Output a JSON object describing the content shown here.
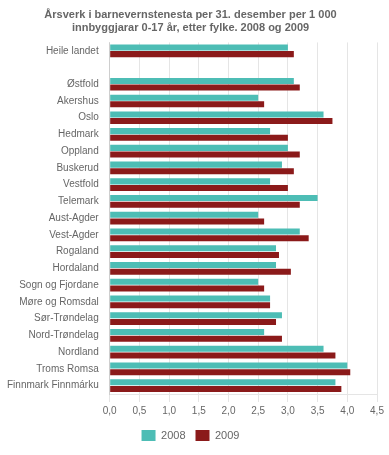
{
  "chart_data": {
    "type": "bar",
    "orientation": "horizontal",
    "title": "Årsverk i barnevernstenesta per 31. desember per 1 000\ninnbyggjarar 0-17 år, etter fylke. 2008 og 2009",
    "categories": [
      "Heile landet",
      null,
      "Østfold",
      "Akershus",
      "Oslo",
      "Hedmark",
      "Oppland",
      "Buskerud",
      "Vestfold",
      "Telemark",
      "Aust-Agder",
      "Vest-Agder",
      "Rogaland",
      "Hordaland",
      "Sogn og Fjordane",
      "Møre og Romsdal",
      "Sør-Trøndelag",
      "Nord-Trøndelag",
      "Nordland",
      "Troms Romsa",
      "Finnmark Finnmárku"
    ],
    "series": [
      {
        "name": "2008",
        "color": "#4DBDB5",
        "values": [
          3.0,
          null,
          3.1,
          2.5,
          3.6,
          2.7,
          3.0,
          2.9,
          2.7,
          3.5,
          2.5,
          3.2,
          2.8,
          2.8,
          2.5,
          2.7,
          2.9,
          2.6,
          3.6,
          4.0,
          3.8
        ]
      },
      {
        "name": "2009",
        "color": "#8B1A1A",
        "values": [
          3.1,
          null,
          3.2,
          2.6,
          3.75,
          3.0,
          3.2,
          3.1,
          3.0,
          3.2,
          2.6,
          3.35,
          2.85,
          3.05,
          2.6,
          2.7,
          2.8,
          2.9,
          3.8,
          4.05,
          3.9
        ]
      }
    ],
    "xlim": [
      0,
      4.5
    ],
    "xticks": [
      {
        "value": 0.0,
        "label": "0,0"
      },
      {
        "value": 0.5,
        "label": "0,5"
      },
      {
        "value": 1.0,
        "label": "1,0"
      },
      {
        "value": 1.5,
        "label": "1,5"
      },
      {
        "value": 2.0,
        "label": "2,0"
      },
      {
        "value": 2.5,
        "label": "2,5"
      },
      {
        "value": 3.0,
        "label": "3,0"
      },
      {
        "value": 3.5,
        "label": "3,5"
      },
      {
        "value": 4.0,
        "label": "4,0"
      },
      {
        "value": 4.5,
        "label": "4,5"
      }
    ],
    "grid": true,
    "legend": "bottom"
  }
}
